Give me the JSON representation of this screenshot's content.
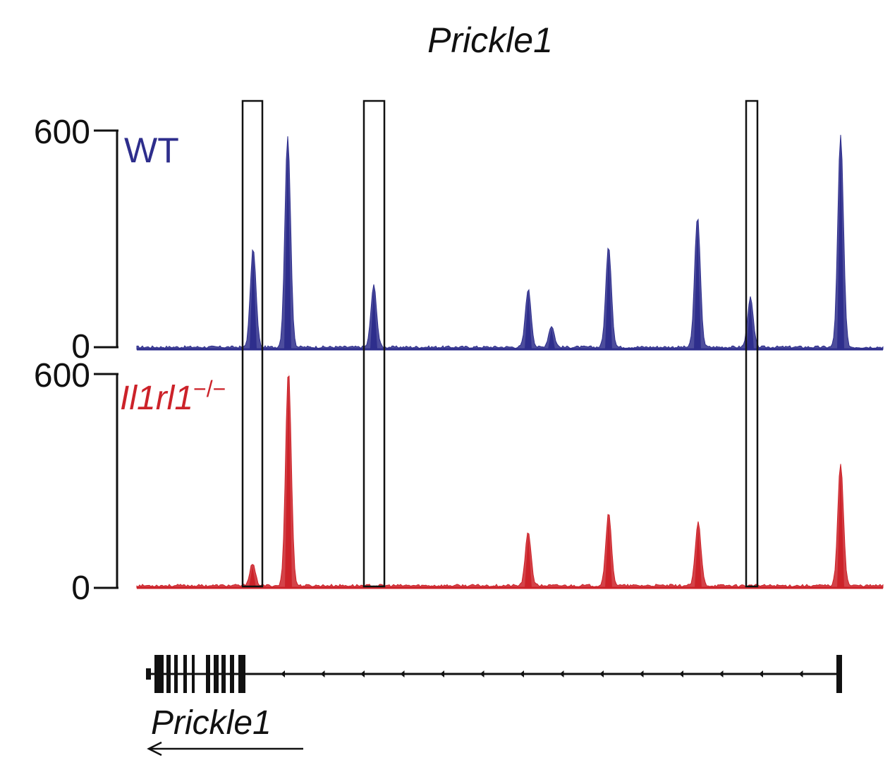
{
  "chart_data": {
    "type": "area",
    "title": "Prickle1",
    "tracks": [
      {
        "name": "WT",
        "color": "#2e2e8c",
        "ylim": [
          0,
          600
        ],
        "y_ticks": [
          "600",
          "0"
        ],
        "peaks": [
          {
            "x": 359,
            "value": 280
          },
          {
            "x": 408,
            "value": 600
          },
          {
            "x": 530,
            "value": 175
          },
          {
            "x": 749,
            "value": 165
          },
          {
            "x": 782,
            "value": 60
          },
          {
            "x": 863,
            "value": 285
          },
          {
            "x": 989,
            "value": 370
          },
          {
            "x": 1064,
            "value": 140
          },
          {
            "x": 1192,
            "value": 600
          }
        ]
      },
      {
        "name_parts": {
          "base": "Il1rl1",
          "sup": "−/−"
        },
        "color": "#cc2229",
        "ylim": [
          0,
          600
        ],
        "y_ticks": [
          "600",
          "0"
        ],
        "peaks": [
          {
            "x": 358,
            "value": 60
          },
          {
            "x": 409,
            "value": 600
          },
          {
            "x": 749,
            "value": 150
          },
          {
            "x": 863,
            "value": 200
          },
          {
            "x": 990,
            "value": 175
          },
          {
            "x": 1192,
            "value": 340
          }
        ]
      }
    ],
    "highlight_regions": [
      {
        "x_start": 344,
        "x_end": 372
      },
      {
        "x_start": 516,
        "x_end": 545
      },
      {
        "x_start": 1058,
        "x_end": 1074
      }
    ],
    "gene": {
      "name": "Prickle1",
      "strand": "-",
      "exons": [
        [
          207,
          214
        ],
        [
          219,
          232
        ],
        [
          236,
          242
        ],
        [
          247,
          252
        ],
        [
          260,
          265
        ],
        [
          272,
          276
        ],
        [
          292,
          298
        ],
        [
          303,
          310
        ],
        [
          314,
          320
        ],
        [
          326,
          332
        ],
        [
          338,
          348
        ],
        [
          1186,
          1194
        ]
      ],
      "body_start": 207,
      "body_end": 1190
    }
  }
}
